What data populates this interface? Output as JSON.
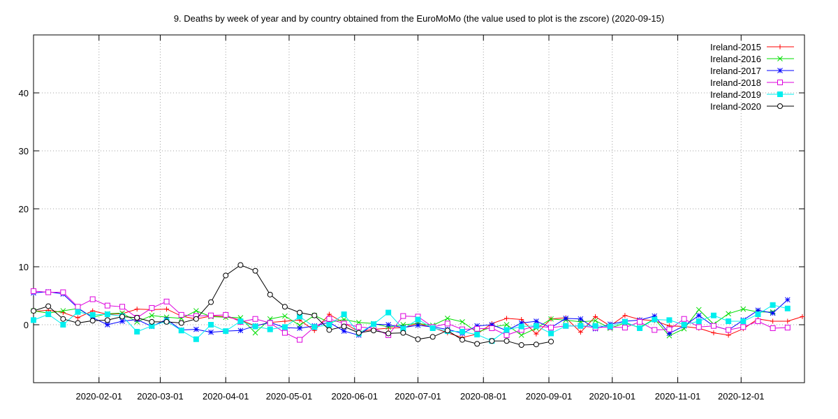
{
  "chart_data": {
    "type": "line",
    "title": "9. Deaths by week of year and by country obtained from the EuroMoMo (the value used to plot is the zscore) (2020-09-15)",
    "xlabel": "",
    "ylabel": "",
    "x_axis_type": "date",
    "xlim": [
      "2020-01-01",
      "2020-12-31"
    ],
    "ylim": [
      -10,
      50
    ],
    "grid": true,
    "legend_position": "top-right",
    "y_ticks": [
      {
        "value": 0,
        "label": "0"
      },
      {
        "value": 10,
        "label": "10"
      },
      {
        "value": 20,
        "label": "20"
      },
      {
        "value": 30,
        "label": "30"
      },
      {
        "value": 40,
        "label": "40"
      }
    ],
    "x_ticks": [
      {
        "value": "2020-02-01",
        "label": "2020-02-01"
      },
      {
        "value": "2020-03-01",
        "label": "2020-03-01"
      },
      {
        "value": "2020-04-01",
        "label": "2020-04-01"
      },
      {
        "value": "2020-05-01",
        "label": "2020-05-01"
      },
      {
        "value": "2020-06-01",
        "label": "2020-06-01"
      },
      {
        "value": "2020-07-01",
        "label": "2020-07-01"
      },
      {
        "value": "2020-08-01",
        "label": "2020-08-01"
      },
      {
        "value": "2020-09-01",
        "label": "2020-09-01"
      },
      {
        "value": "2020-10-01",
        "label": "2020-10-01"
      },
      {
        "value": "2020-11-01",
        "label": "2020-11-01"
      },
      {
        "value": "2020-12-01",
        "label": "2020-12-01"
      }
    ],
    "series": [
      {
        "name": "Ireland-2015",
        "color": "#ff0000",
        "marker": "plus",
        "x": [
          "2020-01-01",
          "2020-01-08",
          "2020-01-15",
          "2020-01-22",
          "2020-01-29",
          "2020-02-05",
          "2020-02-12",
          "2020-02-19",
          "2020-02-26",
          "2020-03-04",
          "2020-03-11",
          "2020-03-18",
          "2020-03-25",
          "2020-04-01",
          "2020-04-08",
          "2020-04-15",
          "2020-04-22",
          "2020-04-29",
          "2020-05-06",
          "2020-05-13",
          "2020-05-20",
          "2020-05-27",
          "2020-06-03",
          "2020-06-10",
          "2020-06-17",
          "2020-06-24",
          "2020-07-01",
          "2020-07-08",
          "2020-07-15",
          "2020-07-22",
          "2020-07-29",
          "2020-08-05",
          "2020-08-12",
          "2020-08-19",
          "2020-08-26",
          "2020-09-02",
          "2020-09-09",
          "2020-09-16",
          "2020-09-23",
          "2020-09-30",
          "2020-10-07",
          "2020-10-14",
          "2020-10-21",
          "2020-10-28",
          "2020-11-04",
          "2020-11-11",
          "2020-11-18",
          "2020-11-25",
          "2020-12-02",
          "2020-12-09",
          "2020-12-16",
          "2020-12-23",
          "2020-12-30"
        ],
        "y": [
          2.3,
          2.5,
          2.1,
          1.2,
          2.4,
          1.8,
          1.9,
          2.7,
          2.6,
          2.7,
          1.5,
          1.0,
          1.5,
          1.4,
          0.8,
          -0.2,
          0.4,
          0.6,
          0.8,
          -1.0,
          1.8,
          0.3,
          -1.2,
          -0.8,
          -0.6,
          -0.5,
          0.2,
          -0.5,
          -1.4,
          -2.2,
          -1.6,
          0.2,
          1.1,
          0.9,
          -1.6,
          1.0,
          1.2,
          -1.3,
          1.4,
          -0.2,
          1.6,
          0.9,
          0.7,
          -0.2,
          -0.3,
          -0.6,
          -1.4,
          -1.8,
          -0.7,
          1.0,
          0.6,
          0.6,
          1.4
        ]
      },
      {
        "name": "Ireland-2016",
        "color": "#00dd00",
        "marker": "cross",
        "x": [
          "2020-01-01",
          "2020-01-08",
          "2020-01-15",
          "2020-01-22",
          "2020-01-29",
          "2020-02-05",
          "2020-02-12",
          "2020-02-19",
          "2020-02-26",
          "2020-03-04",
          "2020-03-11",
          "2020-03-18",
          "2020-03-25",
          "2020-04-01",
          "2020-04-08",
          "2020-04-15",
          "2020-04-22",
          "2020-04-29",
          "2020-05-06",
          "2020-05-13",
          "2020-05-20",
          "2020-05-27",
          "2020-06-03",
          "2020-06-10",
          "2020-06-17",
          "2020-06-24",
          "2020-07-01",
          "2020-07-08",
          "2020-07-15",
          "2020-07-22",
          "2020-07-29",
          "2020-08-05",
          "2020-08-12",
          "2020-08-19",
          "2020-08-26",
          "2020-09-02",
          "2020-09-09",
          "2020-09-16",
          "2020-09-23",
          "2020-09-30",
          "2020-10-07",
          "2020-10-14",
          "2020-10-21",
          "2020-10-28",
          "2020-11-04",
          "2020-11-11",
          "2020-11-18",
          "2020-11-25",
          "2020-12-02",
          "2020-12-09",
          "2020-12-16"
        ],
        "y": [
          2.4,
          2.0,
          2.4,
          2.8,
          1.3,
          1.9,
          2.0,
          0.5,
          1.6,
          1.3,
          1.1,
          2.4,
          1.4,
          1.3,
          1.2,
          -1.4,
          1.0,
          1.5,
          -0.1,
          1.6,
          0.4,
          0.9,
          0.4,
          0.2,
          -0.4,
          0.0,
          0.2,
          -0.1,
          1.1,
          0.5,
          -1.3,
          -0.4,
          0.0,
          -1.8,
          -0.6,
          1.0,
          0.8,
          0.5,
          0.7,
          -0.6,
          0.3,
          -0.5,
          1.0,
          -1.9,
          -0.7,
          2.6,
          0.1,
          1.9,
          2.7,
          2.2,
          2.2
        ]
      },
      {
        "name": "Ireland-2017",
        "color": "#0000ff",
        "marker": "star",
        "x": [
          "2020-01-01",
          "2020-01-08",
          "2020-01-15",
          "2020-01-22",
          "2020-01-29",
          "2020-02-05",
          "2020-02-12",
          "2020-02-19",
          "2020-02-26",
          "2020-03-04",
          "2020-03-11",
          "2020-03-18",
          "2020-03-25",
          "2020-04-01",
          "2020-04-08",
          "2020-04-15",
          "2020-04-22",
          "2020-04-29",
          "2020-05-06",
          "2020-05-13",
          "2020-05-20",
          "2020-05-27",
          "2020-06-03",
          "2020-06-10",
          "2020-06-17",
          "2020-06-24",
          "2020-07-01",
          "2020-07-08",
          "2020-07-15",
          "2020-07-22",
          "2020-07-29",
          "2020-08-05",
          "2020-08-12",
          "2020-08-19",
          "2020-08-26",
          "2020-09-02",
          "2020-09-09",
          "2020-09-16",
          "2020-09-23",
          "2020-09-30",
          "2020-10-07",
          "2020-10-14",
          "2020-10-21",
          "2020-10-28",
          "2020-11-04",
          "2020-11-11",
          "2020-11-18",
          "2020-11-25",
          "2020-12-02",
          "2020-12-09",
          "2020-12-16",
          "2020-12-23"
        ],
        "y": [
          5.5,
          5.7,
          5.3,
          2.9,
          1.2,
          0.0,
          0.6,
          0.9,
          -0.3,
          0.9,
          -0.9,
          -0.8,
          -1.3,
          -1.1,
          -1.0,
          -0.2,
          0.4,
          -0.5,
          -0.6,
          -0.2,
          0.4,
          -1.1,
          -1.8,
          0.1,
          0.0,
          -0.5,
          -0.1,
          -0.4,
          -0.8,
          -1.5,
          -0.2,
          0.0,
          -1.0,
          0.3,
          0.6,
          -0.5,
          1.1,
          1.0,
          -0.7,
          0.1,
          0.6,
          0.8,
          1.5,
          -1.5,
          -0.2,
          1.6,
          -0.2,
          -0.9,
          0.8,
          2.5,
          2.0,
          4.3
        ]
      },
      {
        "name": "Ireland-2018",
        "color": "#dd00dd",
        "marker": "square",
        "x": [
          "2020-01-01",
          "2020-01-08",
          "2020-01-15",
          "2020-01-22",
          "2020-01-29",
          "2020-02-05",
          "2020-02-12",
          "2020-02-19",
          "2020-02-26",
          "2020-03-04",
          "2020-03-11",
          "2020-03-18",
          "2020-03-25",
          "2020-04-01",
          "2020-04-08",
          "2020-04-15",
          "2020-04-22",
          "2020-04-29",
          "2020-05-06",
          "2020-05-13",
          "2020-05-20",
          "2020-05-27",
          "2020-06-03",
          "2020-06-10",
          "2020-06-17",
          "2020-06-24",
          "2020-07-01",
          "2020-07-08",
          "2020-07-15",
          "2020-07-22",
          "2020-07-29",
          "2020-08-05",
          "2020-08-12",
          "2020-08-19",
          "2020-08-26",
          "2020-09-02",
          "2020-09-09",
          "2020-09-16",
          "2020-09-23",
          "2020-09-30",
          "2020-10-07",
          "2020-10-14",
          "2020-10-21",
          "2020-10-28",
          "2020-11-04",
          "2020-11-11",
          "2020-11-18",
          "2020-11-25",
          "2020-12-02",
          "2020-12-09",
          "2020-12-16",
          "2020-12-23"
        ],
        "y": [
          5.8,
          5.6,
          5.6,
          3.1,
          4.4,
          3.3,
          3.1,
          1.2,
          2.9,
          4.0,
          1.7,
          1.5,
          1.6,
          1.7,
          0.5,
          1.0,
          0.3,
          -1.4,
          -2.6,
          -0.4,
          1.0,
          0.2,
          -0.4,
          -0.6,
          -1.8,
          1.5,
          1.4,
          -0.4,
          0.2,
          -0.8,
          -0.7,
          -0.6,
          -1.8,
          -0.9,
          -0.2,
          -0.5,
          -0.2,
          -0.2,
          -0.5,
          -0.4,
          -0.5,
          0.5,
          -0.9,
          -0.8,
          1.0,
          -0.4,
          -0.2,
          -0.9,
          -0.4,
          0.6,
          -0.6,
          -0.5
        ]
      },
      {
        "name": "Ireland-2019",
        "color": "#00eeee",
        "marker": "filled-square",
        "x": [
          "2020-01-01",
          "2020-01-08",
          "2020-01-15",
          "2020-01-22",
          "2020-01-29",
          "2020-02-05",
          "2020-02-12",
          "2020-02-19",
          "2020-02-26",
          "2020-03-04",
          "2020-03-11",
          "2020-03-18",
          "2020-03-25",
          "2020-04-01",
          "2020-04-08",
          "2020-04-15",
          "2020-04-22",
          "2020-04-29",
          "2020-05-06",
          "2020-05-13",
          "2020-05-20",
          "2020-05-27",
          "2020-06-03",
          "2020-06-10",
          "2020-06-17",
          "2020-06-24",
          "2020-07-01",
          "2020-07-08",
          "2020-07-15",
          "2020-07-22",
          "2020-07-29",
          "2020-08-05",
          "2020-08-12",
          "2020-08-19",
          "2020-08-26",
          "2020-09-02",
          "2020-09-09",
          "2020-09-16",
          "2020-09-23",
          "2020-09-30",
          "2020-10-07",
          "2020-10-14",
          "2020-10-21",
          "2020-10-28",
          "2020-11-04",
          "2020-11-11",
          "2020-11-18",
          "2020-11-25",
          "2020-12-02",
          "2020-12-09",
          "2020-12-16",
          "2020-12-23"
        ],
        "y": [
          0.8,
          1.8,
          0.0,
          2.2,
          1.7,
          1.8,
          1.5,
          -1.2,
          -0.2,
          0.6,
          -1.0,
          -2.5,
          0.0,
          -1.1,
          0.6,
          -0.3,
          -0.8,
          -0.4,
          1.4,
          -0.4,
          0.0,
          1.8,
          -1.5,
          0.1,
          2.1,
          -0.7,
          0.9,
          -0.6,
          -1.1,
          -1.2,
          -1.7,
          -2.8,
          -0.9,
          -0.3,
          -0.2,
          -1.5,
          -0.2,
          -0.2,
          -0.2,
          -0.3,
          0.5,
          -0.6,
          0.9,
          0.8,
          0.0,
          0.6,
          1.6,
          0.6,
          0.6,
          1.8,
          3.4,
          2.8
        ]
      },
      {
        "name": "Ireland-2020",
        "color": "#000000",
        "marker": "circle",
        "x": [
          "2020-01-01",
          "2020-01-08",
          "2020-01-15",
          "2020-01-22",
          "2020-01-29",
          "2020-02-05",
          "2020-02-12",
          "2020-02-19",
          "2020-02-26",
          "2020-03-04",
          "2020-03-11",
          "2020-03-18",
          "2020-03-25",
          "2020-04-01",
          "2020-04-08",
          "2020-04-15",
          "2020-04-22",
          "2020-04-29",
          "2020-05-06",
          "2020-05-13",
          "2020-05-20",
          "2020-05-27",
          "2020-06-03",
          "2020-06-10",
          "2020-06-17",
          "2020-06-24",
          "2020-07-01",
          "2020-07-08",
          "2020-07-15",
          "2020-07-22",
          "2020-07-29",
          "2020-08-05",
          "2020-08-12",
          "2020-08-19",
          "2020-08-26",
          "2020-09-02"
        ],
        "y": [
          2.4,
          3.2,
          1.0,
          0.3,
          0.7,
          0.8,
          1.4,
          1.2,
          0.5,
          0.5,
          0.3,
          1.0,
          3.9,
          8.5,
          10.3,
          9.3,
          5.2,
          3.1,
          2.1,
          1.6,
          -0.9,
          -0.3,
          -1.4,
          -1.0,
          -1.5,
          -1.4,
          -2.5,
          -2.1,
          -1.0,
          -2.6,
          -3.3,
          -2.8,
          -2.8,
          -3.5,
          -3.4,
          -2.9
        ]
      }
    ]
  }
}
